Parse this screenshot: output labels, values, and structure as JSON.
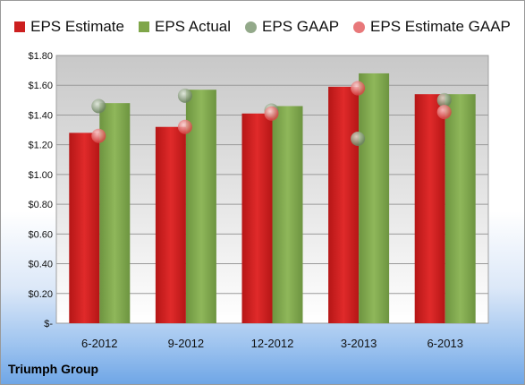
{
  "chart_data": {
    "type": "bar",
    "categories": [
      "6-2012",
      "9-2012",
      "12-2012",
      "3-2013",
      "6-2013"
    ],
    "series": [
      {
        "name": "EPS Estimate",
        "kind": "bar",
        "color": "#cc1f1f",
        "values": [
          1.28,
          1.32,
          1.41,
          1.59,
          1.54
        ]
      },
      {
        "name": "EPS Actual",
        "kind": "bar",
        "color": "#7fa649",
        "values": [
          1.48,
          1.57,
          1.46,
          1.68,
          1.54
        ]
      },
      {
        "name": "EPS GAAP",
        "kind": "scatter",
        "color": "#93a98a",
        "values": [
          1.46,
          1.53,
          1.43,
          1.24,
          1.5
        ]
      },
      {
        "name": "EPS Estimate GAAP",
        "kind": "scatter",
        "color": "#e8787a",
        "values": [
          1.26,
          1.32,
          1.41,
          1.58,
          1.42
        ]
      }
    ],
    "yticks": [
      "$-",
      "$0.20",
      "$0.40",
      "$0.60",
      "$0.80",
      "$1.00",
      "$1.20",
      "$1.40",
      "$1.60",
      "$1.80"
    ],
    "ylim": [
      0,
      1.8
    ],
    "grid": true,
    "legend": "top"
  },
  "footer": {
    "company": "Triumph Group"
  }
}
